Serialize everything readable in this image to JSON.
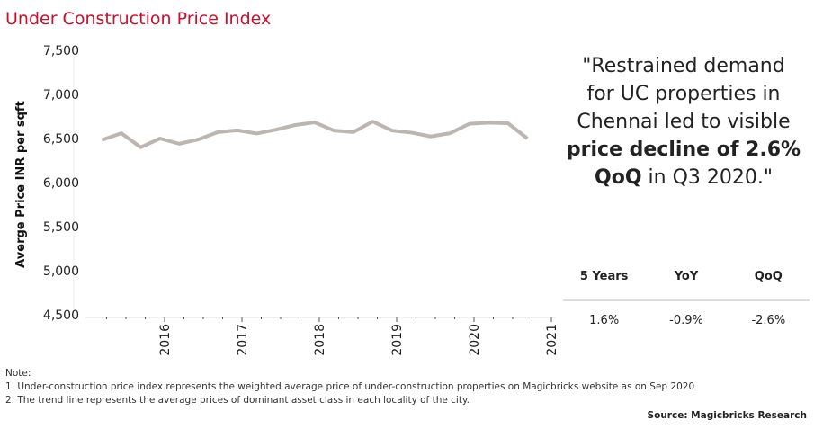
{
  "title": "Under Construction Price Index",
  "chart_data": {
    "type": "line",
    "title": "Under Construction Price Index",
    "ylabel": "Averge Price INR per sqft",
    "xlabel": "",
    "x": [
      "Q1 2015",
      "Q2 2015",
      "Q3 2015",
      "Q4 2015",
      "Q1 2016",
      "Q2 2016",
      "Q3 2016",
      "Q4 2016",
      "Q1 2017",
      "Q2 2017",
      "Q3 2017",
      "Q4 2017",
      "Q1 2018",
      "Q2 2018",
      "Q3 2018",
      "Q4 2018",
      "Q1 2019",
      "Q2 2019",
      "Q3 2019",
      "Q4 2019",
      "Q1 2020",
      "Q2 2020",
      "Q3 2020"
    ],
    "series": [
      {
        "values": [
          6483,
          6560,
          6400,
          6500,
          6440,
          6490,
          6573,
          6593,
          6557,
          6600,
          6653,
          6683,
          6590,
          6573,
          6693,
          6590,
          6567,
          6523,
          6560,
          6667,
          6680,
          6673,
          6500
        ],
        "color": "#bdb5b1"
      }
    ],
    "yticks": [
      "7,500",
      "7,000",
      "6,500",
      "6,000",
      "5,500",
      "5,000",
      "4,500"
    ],
    "ytick_values": [
      7500,
      7000,
      6500,
      6000,
      5500,
      5000,
      4500
    ],
    "xticks": [
      "2016",
      "2017",
      "2018",
      "2019",
      "2020",
      "2021"
    ],
    "ylim": [
      4500,
      7500
    ],
    "grid": false
  },
  "quote": {
    "line1": "\"Restrained demand",
    "line2": "for UC properties in",
    "line3": "Chennai led to visible",
    "bold1": "price decline of 2.6%",
    "bold2": "QoQ",
    "rest": " in Q3 2020.\""
  },
  "table": {
    "headers": [
      "5 Years",
      "YoY",
      "QoQ"
    ],
    "values": [
      "1.6%",
      "-0.9%",
      "-2.6%"
    ]
  },
  "notes": [
    "Note:",
    "1. Under-construction price index represents the weighted average price of under-construction properties on Magicbricks website as on Sep 2020",
    "2. The trend line represents  the average prices of dominant asset class in each locality of the city."
  ],
  "source": "Source: Magicbricks Research"
}
